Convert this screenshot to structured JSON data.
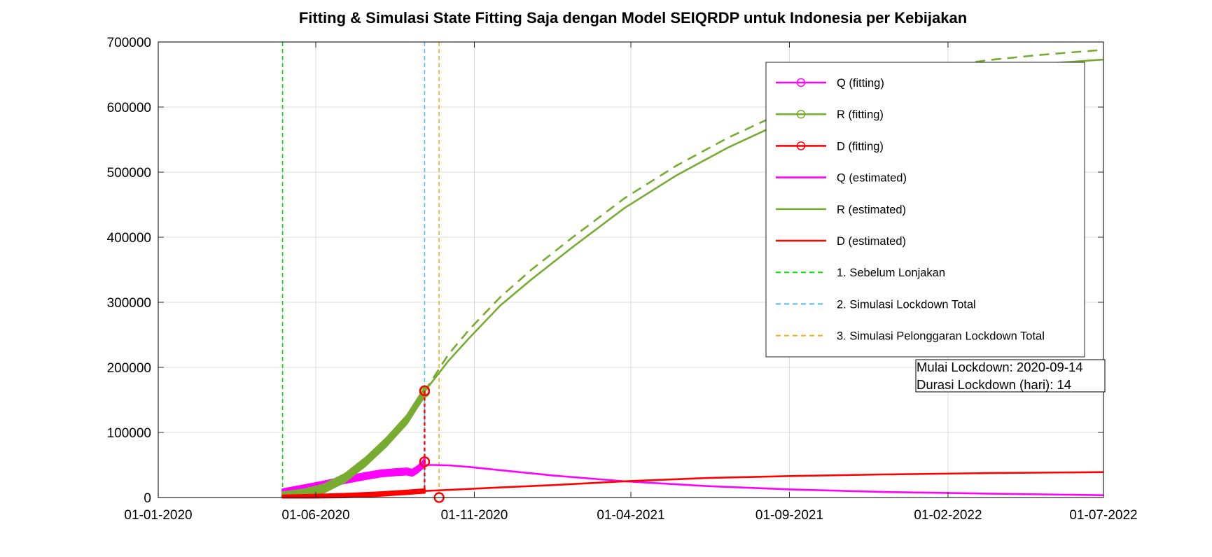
{
  "chart_data": {
    "type": "line",
    "title": "Fitting & Simulasi State Fitting Saja dengan Model SEIQRDP untuk Indonesia per Kebijakan",
    "xlabel": "",
    "ylabel": "",
    "x_tick_labels": [
      "01-01-2020",
      "01-06-2020",
      "01-11-2020",
      "01-04-2021",
      "01-09-2021",
      "01-02-2022",
      "01-07-2022"
    ],
    "x_ticks_days": [
      0,
      152,
      305,
      456,
      609,
      762,
      912
    ],
    "xlim_days": [
      0,
      912
    ],
    "ylim": [
      0,
      700000
    ],
    "y_ticks": [
      0,
      100000,
      200000,
      300000,
      400000,
      500000,
      600000,
      700000
    ],
    "y_tick_labels": [
      "0",
      "100000",
      "200000",
      "300000",
      "400000",
      "500000",
      "600000",
      "700000"
    ],
    "grid": true,
    "legend_position": "top-right",
    "colors": {
      "Q": "#ff00ff",
      "R": "#77ac30",
      "D": "#ff0000",
      "v1": "#00e600",
      "v2": "#4dbeee",
      "v3": "#edb120"
    },
    "fitting_series": [
      {
        "name": "Q (fitting)",
        "color_key": "Q",
        "days": [
          120,
          140,
          160,
          180,
          200,
          215,
          230,
          240,
          245,
          250,
          255,
          257
        ],
        "values": [
          8000,
          14000,
          20000,
          27000,
          33000,
          37000,
          39000,
          40000,
          38000,
          43000,
          50000,
          55000
        ],
        "band": 4500
      },
      {
        "name": "R (fitting)",
        "color_key": "R",
        "days": [
          120,
          140,
          160,
          180,
          200,
          220,
          240,
          250,
          257
        ],
        "values": [
          2000,
          6000,
          14000,
          30000,
          55000,
          85000,
          120000,
          145000,
          162000
        ],
        "band": 6000
      },
      {
        "name": "D (fitting)",
        "color_key": "D",
        "days": [
          120,
          150,
          180,
          210,
          240,
          257
        ],
        "values": [
          500,
          1500,
          3000,
          5000,
          8000,
          10000
        ],
        "band": 2500
      }
    ],
    "estimated_series": [
      {
        "name": "Q (estimated)",
        "color_key": "Q",
        "dashed": false,
        "days": [
          257,
          265,
          280,
          300,
          330,
          380,
          450,
          530,
          610,
          700,
          800,
          912
        ],
        "values": [
          50000,
          50000,
          49500,
          47000,
          42000,
          34000,
          25000,
          17500,
          12500,
          8500,
          6000,
          3500
        ]
      },
      {
        "name": "R (estimated)",
        "color_key": "R",
        "dashed": false,
        "days": [
          257,
          280,
          300,
          330,
          360,
          400,
          450,
          500,
          550,
          600,
          650,
          700,
          750,
          800,
          850,
          912
        ],
        "values": [
          163000,
          210000,
          245000,
          295000,
          335000,
          385000,
          445000,
          495000,
          538000,
          575000,
          605000,
          628000,
          645000,
          658000,
          666000,
          673000
        ]
      },
      {
        "name": "D (estimated)",
        "color_key": "D",
        "dashed": false,
        "days": [
          257,
          290,
          330,
          380,
          450,
          530,
          610,
          700,
          800,
          912
        ],
        "values": [
          10000,
          12500,
          15500,
          19000,
          25000,
          30000,
          33000,
          35500,
          37500,
          39000
        ]
      },
      {
        "name": "R (simulasi pelonggaran)",
        "color_key": "R",
        "dashed": true,
        "days": [
          257,
          280,
          300,
          330,
          360,
          400,
          450,
          500,
          550,
          600,
          650,
          700,
          750,
          800,
          850,
          912
        ],
        "values": [
          163000,
          220000,
          258000,
          308000,
          350000,
          400000,
          460000,
          510000,
          553000,
          590000,
          620000,
          643000,
          660000,
          672000,
          680000,
          688000
        ]
      }
    ],
    "vertical_lines": [
      {
        "name": "1. Sebelum Lonjakan",
        "color_key": "v1",
        "day": 120
      },
      {
        "name": "2. Simulasi Lockdown Total",
        "color_key": "v2",
        "day": 257
      },
      {
        "name": "3. Simulasi Pelonggaran Lockdown Total",
        "color_key": "v3",
        "day": 271
      }
    ],
    "markers": [
      {
        "series": "Q",
        "day": 257,
        "value": 55000
      },
      {
        "series": "R",
        "day": 257,
        "value": 162000
      },
      {
        "series": "D",
        "day": 257,
        "value": 164000
      },
      {
        "series": "D",
        "day": 271,
        "value": 0
      }
    ],
    "legend": [
      {
        "label": "Q (fitting)",
        "color_key": "Q",
        "style": "solid",
        "marker": true
      },
      {
        "label": "R (fitting)",
        "color_key": "R",
        "style": "solid",
        "marker": true
      },
      {
        "label": "D (fitting)",
        "color_key": "D",
        "style": "solid",
        "marker": true
      },
      {
        "label": "Q (estimated)",
        "color_key": "Q",
        "style": "solid",
        "marker": false
      },
      {
        "label": "R (estimated)",
        "color_key": "R",
        "style": "solid",
        "marker": false
      },
      {
        "label": "D (estimated)",
        "color_key": "D",
        "style": "solid",
        "marker": false
      },
      {
        "label": "1. Sebelum Lonjakan",
        "color_key": "v1",
        "style": "dashed",
        "marker": false
      },
      {
        "label": "2. Simulasi Lockdown Total",
        "color_key": "v2",
        "style": "dashed",
        "marker": false
      },
      {
        "label": "3. Simulasi Pelonggaran Lockdown Total",
        "color_key": "v3",
        "style": "dashed",
        "marker": false
      }
    ],
    "annotation": {
      "line1": "Mulai Lockdown: 2020-09-14",
      "line2": "Durasi Lockdown (hari): 14"
    }
  }
}
